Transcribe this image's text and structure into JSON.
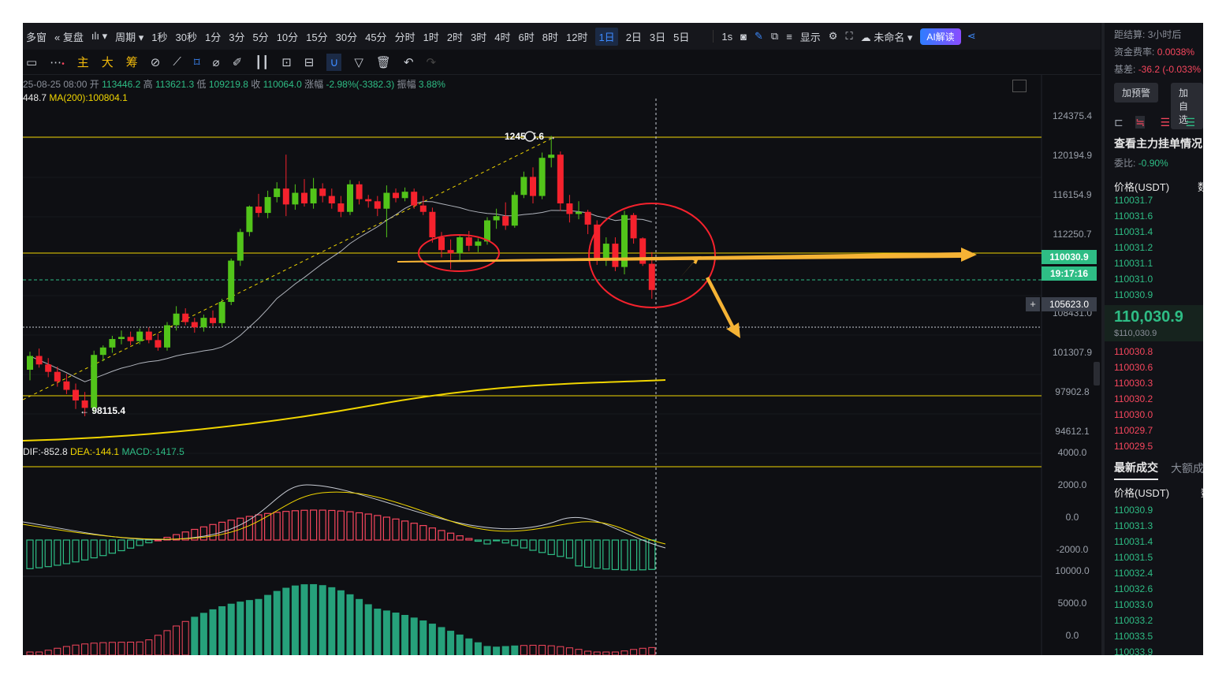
{
  "topbar": {
    "items": [
      "多窗",
      "复盘",
      "周期",
      "1秒",
      "30秒",
      "1分",
      "3分",
      "5分",
      "10分",
      "15分",
      "30分",
      "45分",
      "分时",
      "1时",
      "2时",
      "3时",
      "4时",
      "6时",
      "8时",
      "12时",
      "1日",
      "2日",
      "3日",
      "5日"
    ],
    "active_index": 20,
    "extra": [
      "1s",
      "显示",
      "未命名"
    ],
    "ai_label": "AI解读"
  },
  "toolbar2": {
    "items": [
      "主",
      "大",
      "筹"
    ]
  },
  "info": {
    "date": "25-08-25 08:00",
    "open_label": "开",
    "open": "113446.2",
    "high_label": "高",
    "high": "113621.3",
    "low_label": "低",
    "low": "109219.8",
    "close_label": "收",
    "close": "110064.0",
    "change_label": "涨幅",
    "change": "-2.98%(-3382.3)",
    "amp_label": "振幅",
    "amp": "3.88%"
  },
  "ma": {
    "left_value": "448.7",
    "ma200_label": "MA(200):100804.1"
  },
  "macd": {
    "dif": "DIF:-852.8",
    "dea": "DEA:-144.1",
    "macd": "MACD:-1417.5"
  },
  "chart_data": {
    "type": "candlestick",
    "price_axis_ticks": [
      "124375.4",
      "120194.9",
      "116154.9",
      "112250.7",
      "108431.0",
      "101307.9",
      "97902.8",
      "94612.1"
    ],
    "macd_axis_ticks": [
      "4000.0",
      "2000.0",
      "0.0",
      "-2000.0"
    ],
    "vol_axis_ticks": [
      "10000.0",
      "5000.0",
      "0.0"
    ],
    "current_price": "110030.9",
    "countdown": "19:17:16",
    "crosshair_price": "105623.0",
    "high_marker": "124575.6",
    "low_marker": "98115.4"
  },
  "right": {
    "settle_label": "距结算:",
    "settle_value": "3小时后",
    "funding_label": "资金费率:",
    "funding_value": "0.0038%",
    "basis_label": "基差:",
    "basis_value": "-36.2 (-0.033%",
    "alert_btn": "加预警",
    "watch_btn": "加自选",
    "orders_title": "查看主力挂单情况",
    "ratio_label": "委比:",
    "ratio_value": "-0.90%",
    "price_header": "价格(USDT)",
    "qty_header": "数",
    "asks": [
      "110031.7",
      "110031.6",
      "110031.4",
      "110031.2",
      "110031.1",
      "110031.0",
      "110030.9"
    ],
    "last_price": "110,030.9",
    "last_price_usd": "$110,030.9",
    "bids": [
      "110030.8",
      "110030.6",
      "110030.3",
      "110030.2",
      "110030.0",
      "110029.7",
      "110029.5"
    ],
    "trades_tab": "最新成交",
    "big_trades_tab": "大额成交",
    "trade_price_header": "价格(USDT)",
    "trade_qty_header": "数",
    "trades": [
      "110030.9",
      "110031.3",
      "110031.4",
      "110031.5",
      "110032.4",
      "110032.6",
      "110033.0",
      "110033.2",
      "110033.5",
      "110033.9"
    ]
  },
  "colors": {
    "up": "#2ebd85",
    "down": "#f6465d",
    "accent": "#3d8bff",
    "annotation": "#f5b335",
    "hline": "#f0d500"
  }
}
